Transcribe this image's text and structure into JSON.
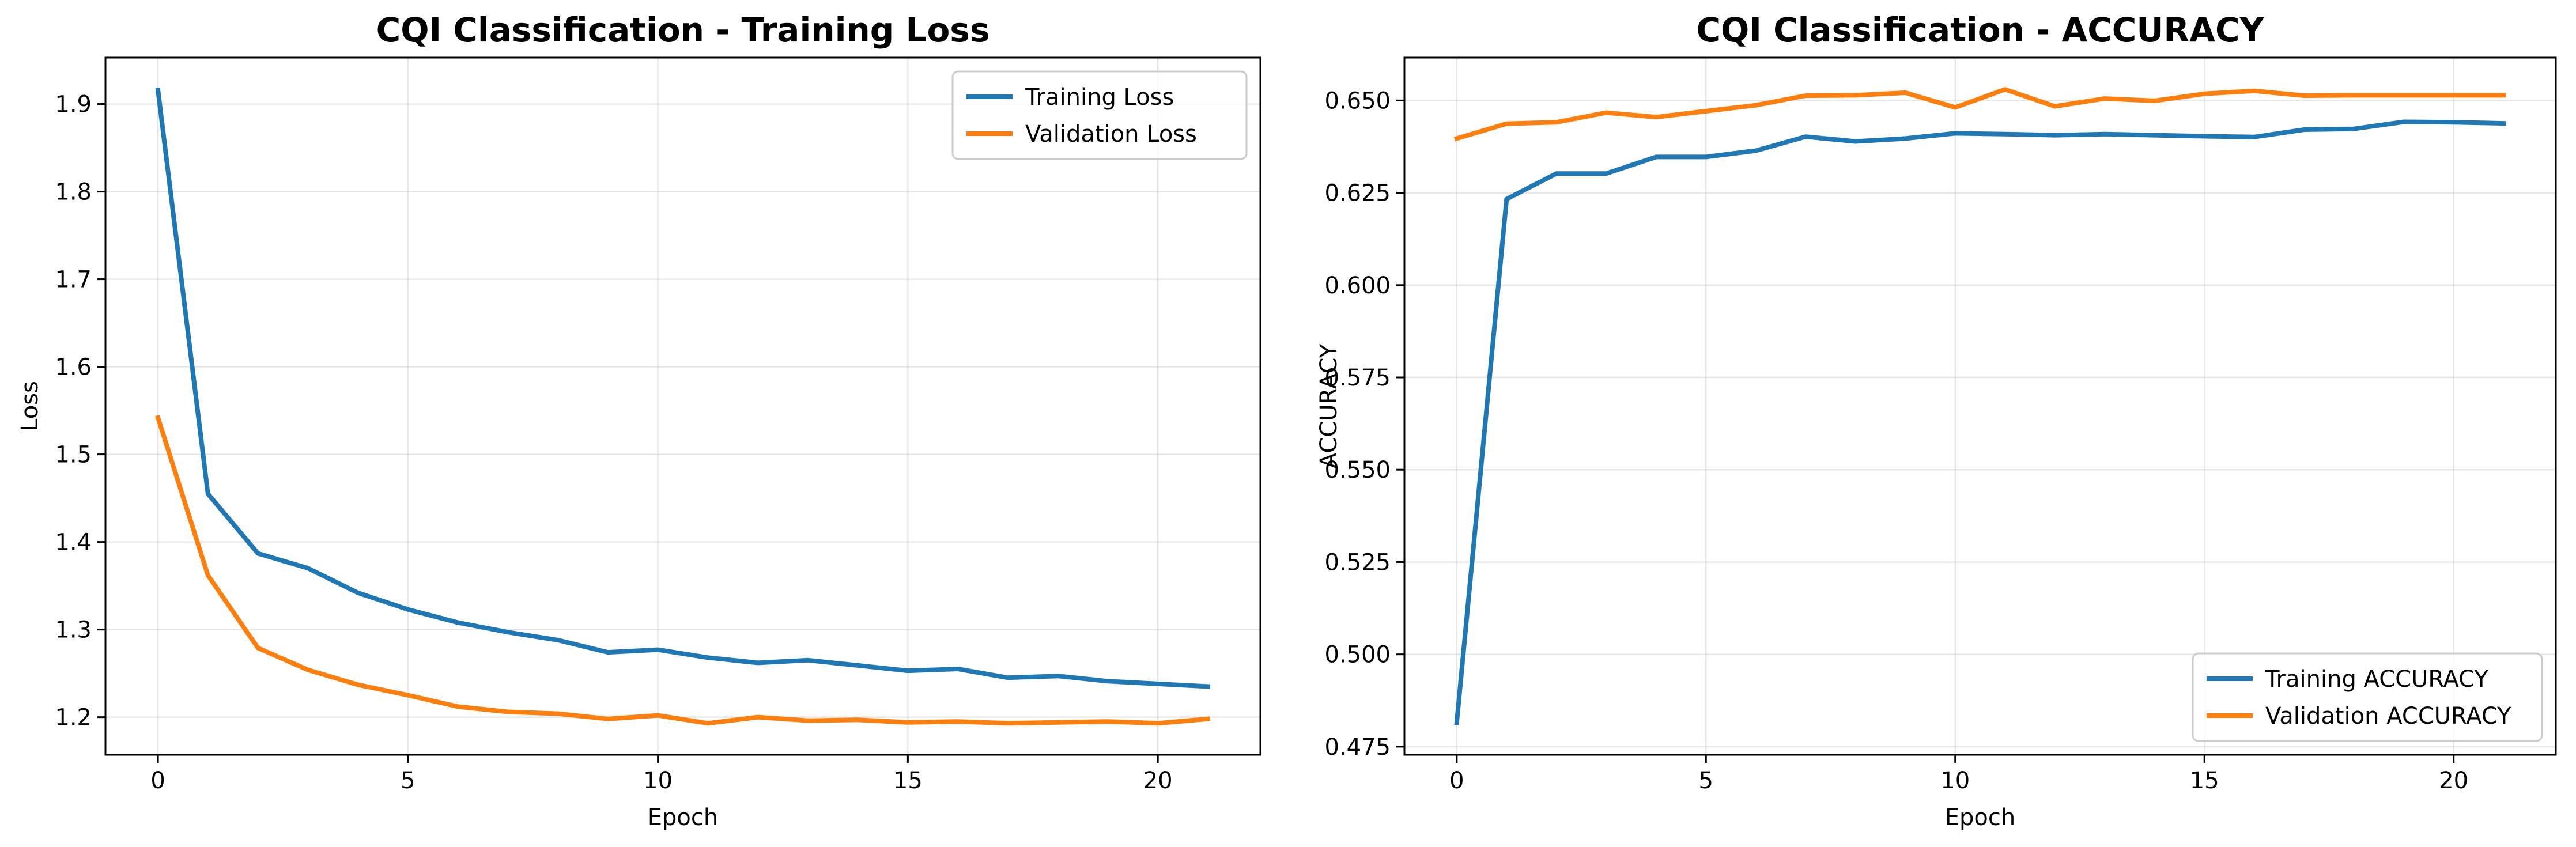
{
  "chart_data": [
    {
      "type": "line",
      "title": "CQI Classification - Training Loss",
      "xlabel": "Epoch",
      "ylabel": "Loss",
      "xlim": [
        -1.05,
        22.05
      ],
      "ylim": [
        1.157,
        1.953
      ],
      "xticks": [
        0,
        5,
        10,
        15,
        20
      ],
      "yticks": [
        1.2,
        1.3,
        1.4,
        1.5,
        1.6,
        1.7,
        1.8,
        1.9
      ],
      "ytick_format": 1,
      "grid": true,
      "legend_position": "upper right",
      "x": [
        0,
        1,
        2,
        3,
        4,
        5,
        6,
        7,
        8,
        9,
        10,
        11,
        12,
        13,
        14,
        15,
        16,
        17,
        18,
        19,
        20,
        21
      ],
      "series": [
        {
          "name": "Training Loss",
          "color": "#1f77b4",
          "values": [
            1.916,
            1.455,
            1.387,
            1.37,
            1.342,
            1.323,
            1.308,
            1.297,
            1.288,
            1.274,
            1.277,
            1.268,
            1.262,
            1.265,
            1.259,
            1.253,
            1.255,
            1.245,
            1.247,
            1.241,
            1.238,
            1.235
          ]
        },
        {
          "name": "Validation Loss",
          "color": "#ff7f0e",
          "values": [
            1.542,
            1.362,
            1.279,
            1.254,
            1.237,
            1.225,
            1.212,
            1.206,
            1.204,
            1.198,
            1.202,
            1.193,
            1.2,
            1.196,
            1.197,
            1.194,
            1.195,
            1.193,
            1.194,
            1.195,
            1.193,
            1.198
          ]
        }
      ]
    },
    {
      "type": "line",
      "title": "CQI Classification - ACCURACY",
      "xlabel": "Epoch",
      "ylabel": "ACCURACY",
      "xlim": [
        -1.05,
        22.05
      ],
      "ylim": [
        0.4728,
        0.6616
      ],
      "xticks": [
        0,
        5,
        10,
        15,
        20
      ],
      "yticks": [
        0.475,
        0.5,
        0.525,
        0.55,
        0.575,
        0.6,
        0.625,
        0.65
      ],
      "ytick_format": 3,
      "grid": true,
      "legend_position": "lower right",
      "x": [
        0,
        1,
        2,
        3,
        4,
        5,
        6,
        7,
        8,
        9,
        10,
        11,
        12,
        13,
        14,
        15,
        16,
        17,
        18,
        19,
        20,
        21
      ],
      "series": [
        {
          "name": "Training ACCURACY",
          "color": "#1f77b4",
          "values": [
            0.4815,
            0.6233,
            0.6302,
            0.6302,
            0.6347,
            0.6347,
            0.6364,
            0.6402,
            0.6389,
            0.6397,
            0.6411,
            0.6409,
            0.6406,
            0.6409,
            0.6406,
            0.6403,
            0.6401,
            0.6421,
            0.6423,
            0.6442,
            0.6441,
            0.6438
          ]
        },
        {
          "name": "Validation ACCURACY",
          "color": "#ff7f0e",
          "values": [
            0.6397,
            0.6437,
            0.6441,
            0.6467,
            0.6455,
            0.6471,
            0.6487,
            0.6513,
            0.6514,
            0.6521,
            0.6481,
            0.653,
            0.6484,
            0.6505,
            0.6499,
            0.6518,
            0.6526,
            0.6513,
            0.6514,
            0.6514,
            0.6514,
            0.6514
          ]
        }
      ]
    }
  ]
}
